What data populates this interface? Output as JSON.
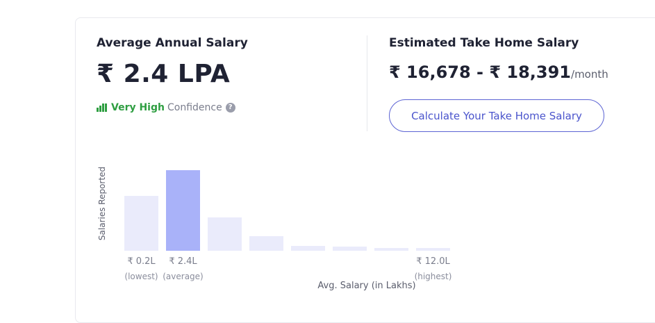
{
  "left": {
    "title": "Average Annual Salary",
    "salary": "₹ 2.4 LPA",
    "confidence_level": "Very High",
    "confidence_word": "Confidence",
    "help_glyph": "?"
  },
  "right": {
    "title": "Estimated Take Home Salary",
    "range": "₹ 16,678 - ₹ 18,391",
    "per": "/month",
    "button_label": "Calculate Your Take Home Salary"
  },
  "colors": {
    "accent": "#5b63d3",
    "confidence_green": "#2e9e41",
    "bar": "#eaebfb",
    "bar_highlight": "#a9b2f9"
  },
  "chart_data": {
    "type": "bar",
    "ylabel": "Salaries Reported",
    "xlabel": "Avg. Salary (in Lakhs)",
    "values": [
      79,
      116,
      48,
      21,
      7,
      6,
      4,
      4
    ],
    "highlight_index": 1,
    "tick_labels": [
      {
        "index": 0,
        "label": "₹ 0.2L",
        "sub": "(lowest)"
      },
      {
        "index": 1,
        "label": "₹ 2.4L",
        "sub": "(average)"
      },
      {
        "index": 7,
        "label": "₹ 12.0L",
        "sub": "(highest)"
      }
    ]
  }
}
